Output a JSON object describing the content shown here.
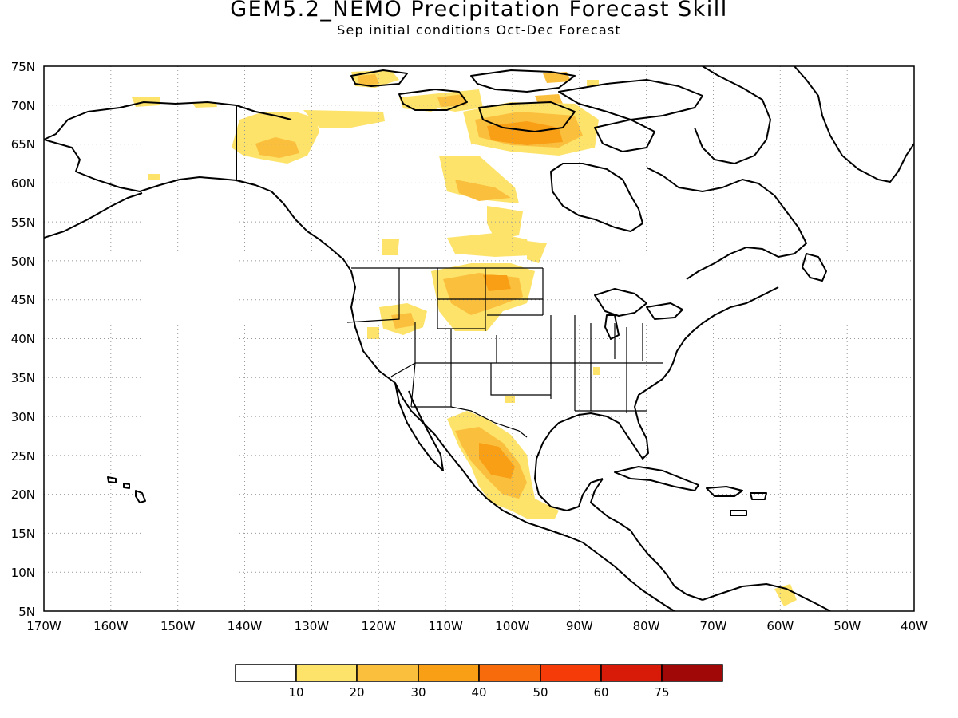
{
  "title": "GEM5.2_NEMO Precipitation Forecast Skill",
  "subtitle": "Sep initial conditions  Oct-Dec Forecast",
  "axes": {
    "lat_labels": [
      "75N",
      "70N",
      "65N",
      "60N",
      "55N",
      "50N",
      "45N",
      "40N",
      "35N",
      "30N",
      "25N",
      "20N",
      "15N",
      "10N",
      "5N"
    ],
    "lon_labels": [
      "170W",
      "160W",
      "150W",
      "140W",
      "130W",
      "120W",
      "110W",
      "100W",
      "90W",
      "80W",
      "70W",
      "60W",
      "50W",
      "40W"
    ],
    "lat_range": [
      5,
      75
    ],
    "lon_range": [
      -170,
      -40
    ],
    "grid": "dotted"
  },
  "colorbar": {
    "labels": [
      "10",
      "20",
      "30",
      "40",
      "50",
      "60",
      "75"
    ],
    "colors": [
      "#ffffff",
      "#fde36a",
      "#fbbf3e",
      "#f99f16",
      "#f76b0c",
      "#f53b07",
      "#d81a08",
      "#a00707"
    ]
  }
}
